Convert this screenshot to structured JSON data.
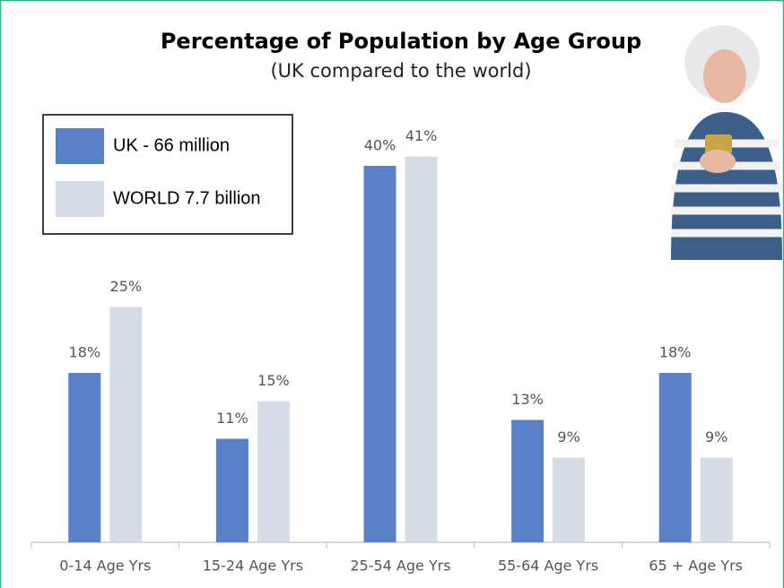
{
  "chart_data": {
    "type": "bar",
    "title": "Percentage of Population by Age Group",
    "subtitle": "(UK compared to the world)",
    "categories": [
      "0-14 Age Yrs",
      "15-24 Age Yrs",
      "25-54 Age Yrs",
      "55-64 Age Yrs",
      "65 + Age Yrs"
    ],
    "series": [
      {
        "name": "UK  - 66 million",
        "color": "#5a81c8",
        "values": [
          18,
          11,
          40,
          13,
          18
        ],
        "value_labels": [
          "18%",
          "11%",
          "40%",
          "13%",
          "18%"
        ]
      },
      {
        "name": "WORLD 7.7 billion",
        "color": "#d6dce5",
        "values": [
          25,
          15,
          41,
          9,
          9
        ],
        "value_labels": [
          "25%",
          "15%",
          "41%",
          "9%",
          "9%"
        ]
      }
    ],
    "legend": "top-left"
  }
}
